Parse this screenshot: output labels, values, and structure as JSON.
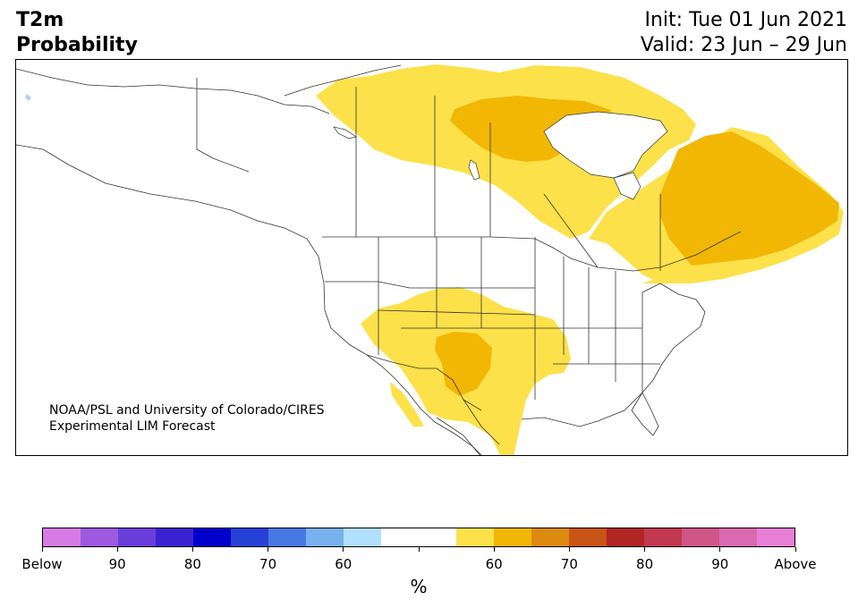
{
  "title": {
    "variable": "T2m",
    "product": "Probability",
    "init": "Init: Tue 01 Jun 2021",
    "valid": "Valid: 23 Jun – 29 Jun"
  },
  "credit": {
    "line1": "NOAA/PSL and University of Colorado/CIRES",
    "line2": "Experimental LIM Forecast"
  },
  "map_colors": {
    "above_55_60": "#fde14a",
    "above_60_70": "#f2b705",
    "below_55_60": "#a9d8f5",
    "borders": "#333333"
  },
  "colorbar": {
    "unit": "%",
    "colors": [
      "#d67be6",
      "#9d59e0",
      "#6a3edb",
      "#3b23d2",
      "#0000cc",
      "#2740d6",
      "#4a78e3",
      "#78b1ee",
      "#b0e0fb",
      "#ffffff",
      "#ffffff",
      "#fde14a",
      "#f2b705",
      "#dd8a10",
      "#c85515",
      "#b12525",
      "#c23a50",
      "#cf5686",
      "#da69b0",
      "#e77fd7"
    ],
    "tick_labels": [
      "Below",
      "90",
      "80",
      "70",
      "60",
      "",
      "60",
      "70",
      "80",
      "90",
      "Above"
    ]
  }
}
